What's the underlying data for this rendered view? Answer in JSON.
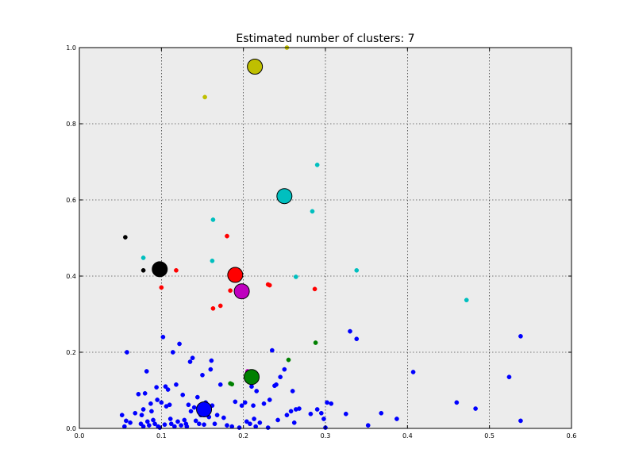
{
  "chart_data": {
    "type": "scatter",
    "title": "Estimated number of clusters: 7",
    "xlabel": "",
    "ylabel": "",
    "xlim": [
      0.0,
      0.6
    ],
    "ylim": [
      0.0,
      1.0
    ],
    "x_ticks": [
      "0.0",
      "0.1",
      "0.2",
      "0.3",
      "0.4",
      "0.5",
      "0.6"
    ],
    "y_ticks": [
      "0.0",
      "0.2",
      "0.4",
      "0.6",
      "0.8",
      "1.0"
    ],
    "grid": true,
    "background": "#ececec",
    "series": [
      {
        "color": "#0000ff",
        "centroid": [
          0.152,
          0.05
        ],
        "points": [
          [
            0.052,
            0.035
          ],
          [
            0.055,
            0.005
          ],
          [
            0.057,
            0.02
          ],
          [
            0.058,
            0.2
          ],
          [
            0.062,
            0.015
          ],
          [
            0.068,
            0.04
          ],
          [
            0.072,
            0.09
          ],
          [
            0.075,
            0.012
          ],
          [
            0.076,
            0.035
          ],
          [
            0.078,
            0.05
          ],
          [
            0.078,
            0.005
          ],
          [
            0.08,
            0.092
          ],
          [
            0.082,
            0.15
          ],
          [
            0.083,
            0.018
          ],
          [
            0.085,
            0.008
          ],
          [
            0.087,
            0.065
          ],
          [
            0.088,
            0.045
          ],
          [
            0.09,
            0.022
          ],
          [
            0.092,
            0.012
          ],
          [
            0.094,
            0.108
          ],
          [
            0.095,
            0.075
          ],
          [
            0.096,
            0.005
          ],
          [
            0.098,
            0.002
          ],
          [
            0.1,
            0.068
          ],
          [
            0.102,
            0.24
          ],
          [
            0.104,
            0.01
          ],
          [
            0.105,
            0.11
          ],
          [
            0.106,
            0.058
          ],
          [
            0.108,
            0.102
          ],
          [
            0.11,
            0.062
          ],
          [
            0.111,
            0.025
          ],
          [
            0.112,
            0.012
          ],
          [
            0.114,
            0.2
          ],
          [
            0.116,
            0.005
          ],
          [
            0.118,
            0.115
          ],
          [
            0.12,
            0.018
          ],
          [
            0.122,
            0.222
          ],
          [
            0.124,
            0.008
          ],
          [
            0.126,
            0.088
          ],
          [
            0.128,
            0.022
          ],
          [
            0.13,
            0.012
          ],
          [
            0.131,
            0.005
          ],
          [
            0.133,
            0.062
          ],
          [
            0.135,
            0.175
          ],
          [
            0.136,
            0.045
          ],
          [
            0.138,
            0.185
          ],
          [
            0.14,
            0.055
          ],
          [
            0.142,
            0.02
          ],
          [
            0.144,
            0.082
          ],
          [
            0.146,
            0.012
          ],
          [
            0.148,
            0.035
          ],
          [
            0.15,
            0.14
          ],
          [
            0.152,
            0.01
          ],
          [
            0.154,
            0.068
          ],
          [
            0.156,
            0.04
          ],
          [
            0.158,
            0.03
          ],
          [
            0.16,
            0.155
          ],
          [
            0.161,
            0.178
          ],
          [
            0.162,
            0.06
          ],
          [
            0.165,
            0.012
          ],
          [
            0.168,
            0.035
          ],
          [
            0.172,
            0.115
          ],
          [
            0.176,
            0.028
          ],
          [
            0.18,
            0.008
          ],
          [
            0.186,
            0.005
          ],
          [
            0.19,
            0.07
          ],
          [
            0.195,
            0.002
          ],
          [
            0.198,
            0.06
          ],
          [
            0.202,
            0.068
          ],
          [
            0.204,
            0.018
          ],
          [
            0.208,
            0.012
          ],
          [
            0.21,
            0.11
          ],
          [
            0.212,
            0.06
          ],
          [
            0.213,
            0.025
          ],
          [
            0.215,
            0.005
          ],
          [
            0.216,
            0.098
          ],
          [
            0.22,
            0.015
          ],
          [
            0.225,
            0.065
          ],
          [
            0.23,
            0.002
          ],
          [
            0.232,
            0.075
          ],
          [
            0.235,
            0.205
          ],
          [
            0.238,
            0.112
          ],
          [
            0.24,
            0.115
          ],
          [
            0.242,
            0.022
          ],
          [
            0.245,
            0.135
          ],
          [
            0.25,
            0.155
          ],
          [
            0.253,
            0.035
          ],
          [
            0.258,
            0.045
          ],
          [
            0.26,
            0.098
          ],
          [
            0.262,
            0.015
          ],
          [
            0.264,
            0.05
          ],
          [
            0.268,
            0.052
          ],
          [
            0.282,
            0.038
          ],
          [
            0.29,
            0.05
          ],
          [
            0.295,
            0.04
          ],
          [
            0.298,
            0.025
          ],
          [
            0.3,
            0.002
          ],
          [
            0.302,
            0.068
          ],
          [
            0.307,
            0.065
          ],
          [
            0.325,
            0.038
          ],
          [
            0.33,
            0.255
          ],
          [
            0.338,
            0.235
          ],
          [
            0.352,
            0.008
          ],
          [
            0.368,
            0.04
          ],
          [
            0.387,
            0.025
          ],
          [
            0.407,
            0.148
          ],
          [
            0.46,
            0.068
          ],
          [
            0.483,
            0.052
          ],
          [
            0.524,
            0.135
          ],
          [
            0.538,
            0.02
          ],
          [
            0.538,
            0.242
          ]
        ]
      },
      {
        "color": "#008000",
        "centroid": [
          0.21,
          0.135
        ],
        "points": [
          [
            0.184,
            0.118
          ],
          [
            0.186,
            0.116
          ],
          [
            0.255,
            0.18
          ],
          [
            0.288,
            0.225
          ],
          [
            0.206,
            0.146
          ]
        ]
      },
      {
        "color": "#ff0000",
        "centroid": [
          0.19,
          0.403
        ],
        "points": [
          [
            0.1,
            0.37
          ],
          [
            0.118,
            0.415
          ],
          [
            0.163,
            0.315
          ],
          [
            0.172,
            0.322
          ],
          [
            0.18,
            0.505
          ],
          [
            0.184,
            0.362
          ],
          [
            0.23,
            0.378
          ],
          [
            0.232,
            0.376
          ],
          [
            0.287,
            0.366
          ]
        ]
      },
      {
        "color": "#00bfbf",
        "centroid": [
          0.25,
          0.61
        ],
        "points": [
          [
            0.078,
            0.448
          ],
          [
            0.163,
            0.548
          ],
          [
            0.162,
            0.44
          ],
          [
            0.264,
            0.398
          ],
          [
            0.284,
            0.57
          ],
          [
            0.29,
            0.692
          ],
          [
            0.338,
            0.415
          ],
          [
            0.472,
            0.337
          ]
        ]
      },
      {
        "color": "#bf00bf",
        "centroid": [
          0.198,
          0.36
        ],
        "points": [
          [
            0.205,
            0.15
          ]
        ]
      },
      {
        "color": "#bfbf00",
        "centroid": [
          0.214,
          0.95
        ],
        "points": [
          [
            0.153,
            0.87
          ],
          [
            0.253,
            1.0
          ]
        ]
      },
      {
        "color": "#000000",
        "centroid": [
          0.098,
          0.418
        ],
        "points": [
          [
            0.056,
            0.502
          ],
          [
            0.078,
            0.415
          ]
        ]
      }
    ]
  }
}
